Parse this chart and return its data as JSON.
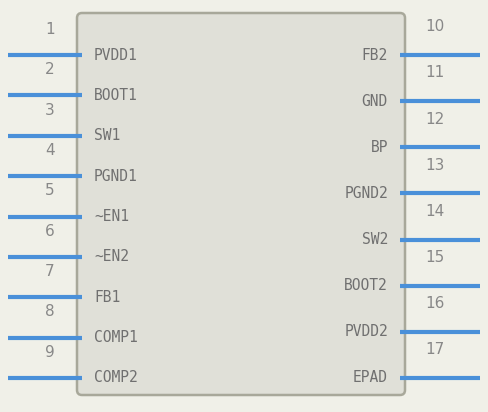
{
  "background_color": "#f0f0e8",
  "body_color": "#e0e0d8",
  "body_edge_color": "#a8a89a",
  "pin_color": "#4a90d9",
  "text_color": "#707070",
  "num_color": "#888888",
  "left_pins": [
    {
      "num": 1,
      "name": "PVDD1"
    },
    {
      "num": 2,
      "name": "BOOT1"
    },
    {
      "num": 3,
      "name": "SW1"
    },
    {
      "num": 4,
      "name": "PGND1"
    },
    {
      "num": 5,
      "name": "~EN1"
    },
    {
      "num": 6,
      "name": "~EN2"
    },
    {
      "num": 7,
      "name": "FB1"
    },
    {
      "num": 8,
      "name": "COMP1"
    },
    {
      "num": 9,
      "name": "COMP2"
    }
  ],
  "right_pins": [
    {
      "num": 10,
      "name": "FB2"
    },
    {
      "num": 11,
      "name": "GND"
    },
    {
      "num": 12,
      "name": "BP"
    },
    {
      "num": 13,
      "name": "PGND2"
    },
    {
      "num": 14,
      "name": "SW2"
    },
    {
      "num": 15,
      "name": "BOOT2"
    },
    {
      "num": 16,
      "name": "PVDD2"
    },
    {
      "num": 17,
      "name": "EPAD"
    }
  ],
  "figsize": [
    4.88,
    4.12
  ],
  "dpi": 100
}
